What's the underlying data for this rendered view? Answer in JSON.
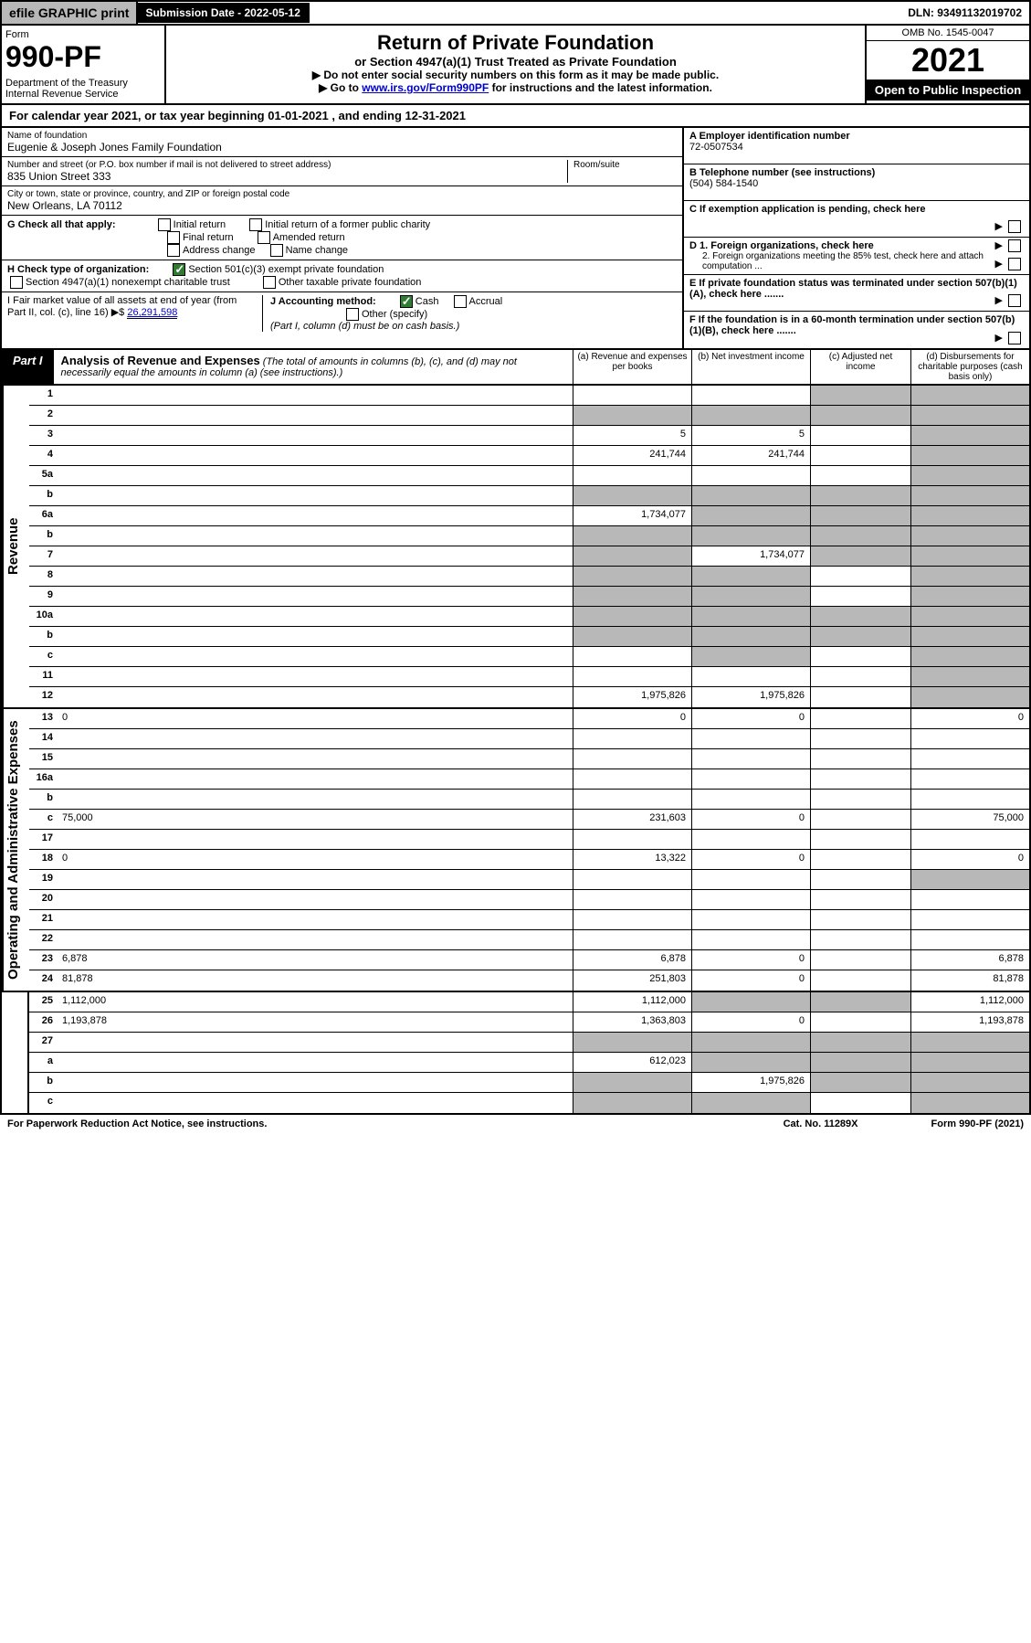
{
  "topbar": {
    "efile": "efile GRAPHIC print",
    "submission": "Submission Date - 2022-05-12",
    "dln": "DLN: 93491132019702"
  },
  "header": {
    "form_label": "Form",
    "form_num": "990-PF",
    "dept": "Department of the Treasury\nInternal Revenue Service",
    "title": "Return of Private Foundation",
    "subtitle": "or Section 4947(a)(1) Trust Treated as Private Foundation",
    "instr1": "▶ Do not enter social security numbers on this form as it may be made public.",
    "instr2_pre": "▶ Go to ",
    "instr2_link": "www.irs.gov/Form990PF",
    "instr2_post": " for instructions and the latest information.",
    "omb": "OMB No. 1545-0047",
    "year": "2021",
    "inspect": "Open to Public Inspection"
  },
  "calyear": "For calendar year 2021, or tax year beginning 01-01-2021               , and ending 12-31-2021",
  "info": {
    "name_lbl": "Name of foundation",
    "name": "Eugenie & Joseph Jones Family Foundation",
    "addr_lbl": "Number and street (or P.O. box number if mail is not delivered to street address)",
    "addr": "835 Union Street 333",
    "room_lbl": "Room/suite",
    "city_lbl": "City or town, state or province, country, and ZIP or foreign postal code",
    "city": "New Orleans, LA  70112",
    "g_lbl": "G Check all that apply:",
    "g_opts": [
      "Initial return",
      "Initial return of a former public charity",
      "Final return",
      "Amended return",
      "Address change",
      "Name change"
    ],
    "h_lbl": "H Check type of organization:",
    "h_opt1": "Section 501(c)(3) exempt private foundation",
    "h_opt2": "Section 4947(a)(1) nonexempt charitable trust",
    "h_opt3": "Other taxable private foundation",
    "i_lbl": "I Fair market value of all assets at end of year (from Part II, col. (c), line 16) ▶$",
    "i_val": "26,291,598",
    "j_lbl": "J Accounting method:",
    "j_opts": [
      "Cash",
      "Accrual",
      "Other (specify)"
    ],
    "j_note": "(Part I, column (d) must be on cash basis.)",
    "a_lbl": "A Employer identification number",
    "a_val": "72-0507534",
    "b_lbl": "B Telephone number (see instructions)",
    "b_val": "(504) 584-1540",
    "c_lbl": "C If exemption application is pending, check here",
    "d1_lbl": "D 1. Foreign organizations, check here",
    "d2_lbl": "2. Foreign organizations meeting the 85% test, check here and attach computation ...",
    "e_lbl": "E If private foundation status was terminated under section 507(b)(1)(A), check here .......",
    "f_lbl": "F If the foundation is in a 60-month termination under section 507(b)(1)(B), check here ......."
  },
  "part1": {
    "badge": "Part I",
    "title": "Analysis of Revenue and Expenses",
    "note": "(The total of amounts in columns (b), (c), and (d) may not necessarily equal the amounts in column (a) (see instructions).)",
    "cols": {
      "a": "(a) Revenue and expenses per books",
      "b": "(b) Net investment income",
      "c": "(c) Adjusted net income",
      "d": "(d) Disbursements for charitable purposes (cash basis only)"
    }
  },
  "sidelabels": {
    "rev": "Revenue",
    "exp": "Operating and Administrative Expenses"
  },
  "rows": [
    {
      "n": "1",
      "d": "",
      "a": "",
      "b": "",
      "c": "",
      "shade_c": true,
      "shade_d": true
    },
    {
      "n": "2",
      "d": "",
      "a": "",
      "b": "",
      "c": "",
      "shade_a": true,
      "shade_b": true,
      "shade_c": true,
      "shade_d": true
    },
    {
      "n": "3",
      "d": "",
      "a": "5",
      "b": "5",
      "c": "",
      "shade_d": true
    },
    {
      "n": "4",
      "d": "",
      "a": "241,744",
      "b": "241,744",
      "c": "",
      "shade_d": true
    },
    {
      "n": "5a",
      "d": "",
      "a": "",
      "b": "",
      "c": "",
      "shade_d": true
    },
    {
      "n": "b",
      "d": "",
      "a": "",
      "b": "",
      "c": "",
      "shade_a": true,
      "shade_b": true,
      "shade_c": true,
      "shade_d": true
    },
    {
      "n": "6a",
      "d": "",
      "a": "1,734,077",
      "b": "",
      "c": "",
      "shade_b": true,
      "shade_c": true,
      "shade_d": true
    },
    {
      "n": "b",
      "d": "",
      "a": "",
      "b": "",
      "c": "",
      "shade_a": true,
      "shade_b": true,
      "shade_c": true,
      "shade_d": true
    },
    {
      "n": "7",
      "d": "",
      "a": "",
      "b": "1,734,077",
      "c": "",
      "shade_a": true,
      "shade_c": true,
      "shade_d": true
    },
    {
      "n": "8",
      "d": "",
      "a": "",
      "b": "",
      "c": "",
      "shade_a": true,
      "shade_b": true,
      "shade_d": true
    },
    {
      "n": "9",
      "d": "",
      "a": "",
      "b": "",
      "c": "",
      "shade_a": true,
      "shade_b": true,
      "shade_d": true
    },
    {
      "n": "10a",
      "d": "",
      "a": "",
      "b": "",
      "c": "",
      "shade_a": true,
      "shade_b": true,
      "shade_c": true,
      "shade_d": true
    },
    {
      "n": "b",
      "d": "",
      "a": "",
      "b": "",
      "c": "",
      "shade_a": true,
      "shade_b": true,
      "shade_c": true,
      "shade_d": true
    },
    {
      "n": "c",
      "d": "",
      "a": "",
      "b": "",
      "c": "",
      "shade_b": true,
      "shade_d": true
    },
    {
      "n": "11",
      "d": "",
      "a": "",
      "b": "",
      "c": "",
      "shade_d": true
    },
    {
      "n": "12",
      "d": "",
      "a": "1,975,826",
      "b": "1,975,826",
      "c": "",
      "shade_d": true,
      "bold": true
    },
    {
      "n": "13",
      "d": "0",
      "a": "0",
      "b": "0",
      "c": ""
    },
    {
      "n": "14",
      "d": "",
      "a": "",
      "b": "",
      "c": ""
    },
    {
      "n": "15",
      "d": "",
      "a": "",
      "b": "",
      "c": ""
    },
    {
      "n": "16a",
      "d": "",
      "a": "",
      "b": "",
      "c": ""
    },
    {
      "n": "b",
      "d": "",
      "a": "",
      "b": "",
      "c": ""
    },
    {
      "n": "c",
      "d": "75,000",
      "a": "231,603",
      "b": "0",
      "c": ""
    },
    {
      "n": "17",
      "d": "",
      "a": "",
      "b": "",
      "c": ""
    },
    {
      "n": "18",
      "d": "0",
      "a": "13,322",
      "b": "0",
      "c": ""
    },
    {
      "n": "19",
      "d": "",
      "a": "",
      "b": "",
      "c": "",
      "shade_d": true
    },
    {
      "n": "20",
      "d": "",
      "a": "",
      "b": "",
      "c": ""
    },
    {
      "n": "21",
      "d": "",
      "a": "",
      "b": "",
      "c": ""
    },
    {
      "n": "22",
      "d": "",
      "a": "",
      "b": "",
      "c": ""
    },
    {
      "n": "23",
      "d": "6,878",
      "a": "6,878",
      "b": "0",
      "c": ""
    },
    {
      "n": "24",
      "d": "81,878",
      "a": "251,803",
      "b": "0",
      "c": "",
      "bold": true
    },
    {
      "n": "25",
      "d": "1,112,000",
      "a": "1,112,000",
      "b": "",
      "c": "",
      "shade_b": true,
      "shade_c": true
    },
    {
      "n": "26",
      "d": "1,193,878",
      "a": "1,363,803",
      "b": "0",
      "c": "",
      "bold": true
    },
    {
      "n": "27",
      "d": "",
      "a": "",
      "b": "",
      "c": "",
      "shade_a": true,
      "shade_b": true,
      "shade_c": true,
      "shade_d": true
    },
    {
      "n": "a",
      "d": "",
      "a": "612,023",
      "b": "",
      "c": "",
      "shade_b": true,
      "shade_c": true,
      "shade_d": true
    },
    {
      "n": "b",
      "d": "",
      "a": "",
      "b": "1,975,826",
      "c": "",
      "shade_a": true,
      "shade_c": true,
      "shade_d": true
    },
    {
      "n": "c",
      "d": "",
      "a": "",
      "b": "",
      "c": "",
      "shade_a": true,
      "shade_b": true,
      "shade_d": true
    }
  ],
  "footer": {
    "left": "For Paperwork Reduction Act Notice, see instructions.",
    "mid": "Cat. No. 11289X",
    "right": "Form 990-PF (2021)"
  }
}
